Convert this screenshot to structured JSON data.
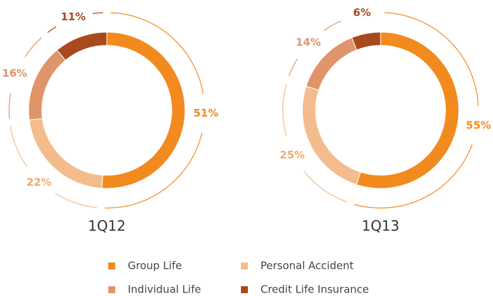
{
  "chart_data": [
    {
      "type": "pie",
      "title": "1Q12",
      "categories": [
        "Group Life",
        "Personal Accident",
        "Individual Life",
        "Credit Life Insurance"
      ],
      "values": [
        51,
        22,
        16,
        11
      ],
      "value_labels": [
        "51%",
        "22%",
        "16%",
        "11%"
      ],
      "colors": [
        "#f28a1e",
        "#f4bc8c",
        "#e0946a",
        "#a94a1e"
      ]
    },
    {
      "type": "pie",
      "title": "1Q13",
      "categories": [
        "Group Life",
        "Personal Accident",
        "Individual Life",
        "Credit Life Insurance"
      ],
      "values": [
        55,
        25,
        14,
        6
      ],
      "value_labels": [
        "55%",
        "25%",
        "14%",
        "6%"
      ],
      "colors": [
        "#f28a1e",
        "#f4bc8c",
        "#e0946a",
        "#a94a1e"
      ]
    }
  ]
}
